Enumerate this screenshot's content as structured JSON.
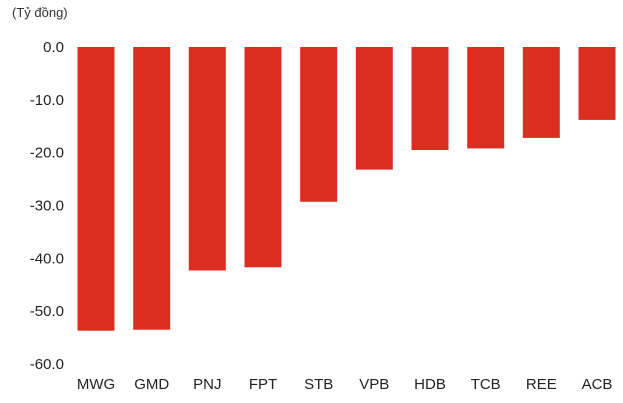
{
  "chart_data": {
    "type": "bar",
    "unit_label": "(Tỷ đồng)",
    "categories": [
      "MWG",
      "GMD",
      "PNJ",
      "FPT",
      "STB",
      "VPB",
      "HDB",
      "TCB",
      "REE",
      "ACB"
    ],
    "values": [
      -53.7,
      -53.5,
      -42.3,
      -41.7,
      -29.3,
      -23.2,
      -19.5,
      -19.2,
      -17.2,
      -13.8
    ],
    "yticks": [
      "0.0",
      "-10.0",
      "-20.0",
      "-30.0",
      "-40.0",
      "-50.0",
      "-60.0"
    ],
    "ylim": [
      -60,
      0
    ],
    "xlabel": "",
    "ylabel": "",
    "grid": false,
    "legend": "none",
    "bar_color": "#dc2e20"
  }
}
